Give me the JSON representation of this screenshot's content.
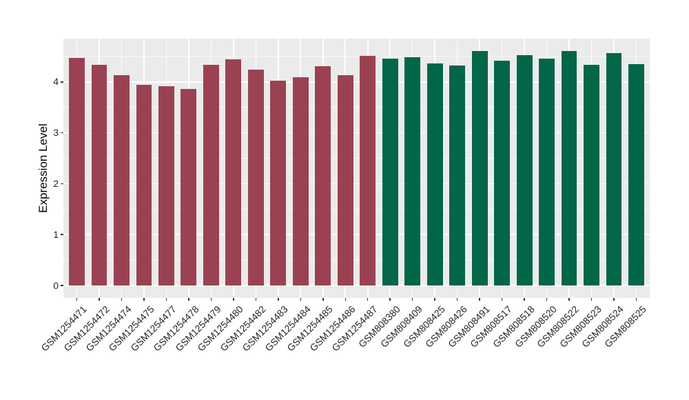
{
  "chart_data": {
    "type": "bar",
    "title": "",
    "xlabel": "",
    "ylabel": "Expression Level",
    "categories": [
      "GSM1254471",
      "GSM1254472",
      "GSM1254474",
      "GSM1254475",
      "GSM1254477",
      "GSM1254478",
      "GSM1254479",
      "GSM1254480",
      "GSM1254482",
      "GSM1254483",
      "GSM1254484",
      "GSM1254485",
      "GSM1254486",
      "GSM1254487",
      "GSM808380",
      "GSM808409",
      "GSM808425",
      "GSM808426",
      "GSM808491",
      "GSM808517",
      "GSM808518",
      "GSM808520",
      "GSM808522",
      "GSM808523",
      "GSM808524",
      "GSM808525"
    ],
    "values": [
      4.47,
      4.34,
      4.13,
      3.94,
      3.92,
      3.86,
      4.34,
      4.44,
      4.24,
      4.02,
      4.09,
      4.31,
      4.13,
      4.51,
      4.46,
      4.49,
      4.36,
      4.32,
      4.61,
      4.42,
      4.53,
      4.46,
      4.61,
      4.34,
      4.57,
      4.35
    ],
    "bar_colors": [
      "#9B4252",
      "#9B4252",
      "#9B4252",
      "#9B4252",
      "#9B4252",
      "#9B4252",
      "#9B4252",
      "#9B4252",
      "#9B4252",
      "#9B4252",
      "#9B4252",
      "#9B4252",
      "#9B4252",
      "#9B4252",
      "#026649",
      "#026649",
      "#026649",
      "#026649",
      "#026649",
      "#026649",
      "#026649",
      "#026649",
      "#026649",
      "#026649",
      "#026649",
      "#026649"
    ],
    "group_colors": {
      "GSM1254xxx_samples": "#9B4252",
      "GSM808xxx_samples": "#026649"
    },
    "yticks": [
      0,
      1,
      2,
      3,
      4
    ],
    "ytick_labels": [
      "0",
      "1",
      "2",
      "3",
      "4"
    ],
    "y_minor_ticks": [
      0.5,
      1.5,
      2.5,
      3.5,
      4.5
    ],
    "ylim": [
      -0.25,
      4.85
    ],
    "legend": "none",
    "grid": "white major and minor horizontal lines plus vertical category lines on grey panel",
    "panel_bg": "#EBEBEB",
    "grid_color": "#FFFFFF",
    "axis_text_color": "#262626",
    "tick_mark_color": "#333333"
  }
}
